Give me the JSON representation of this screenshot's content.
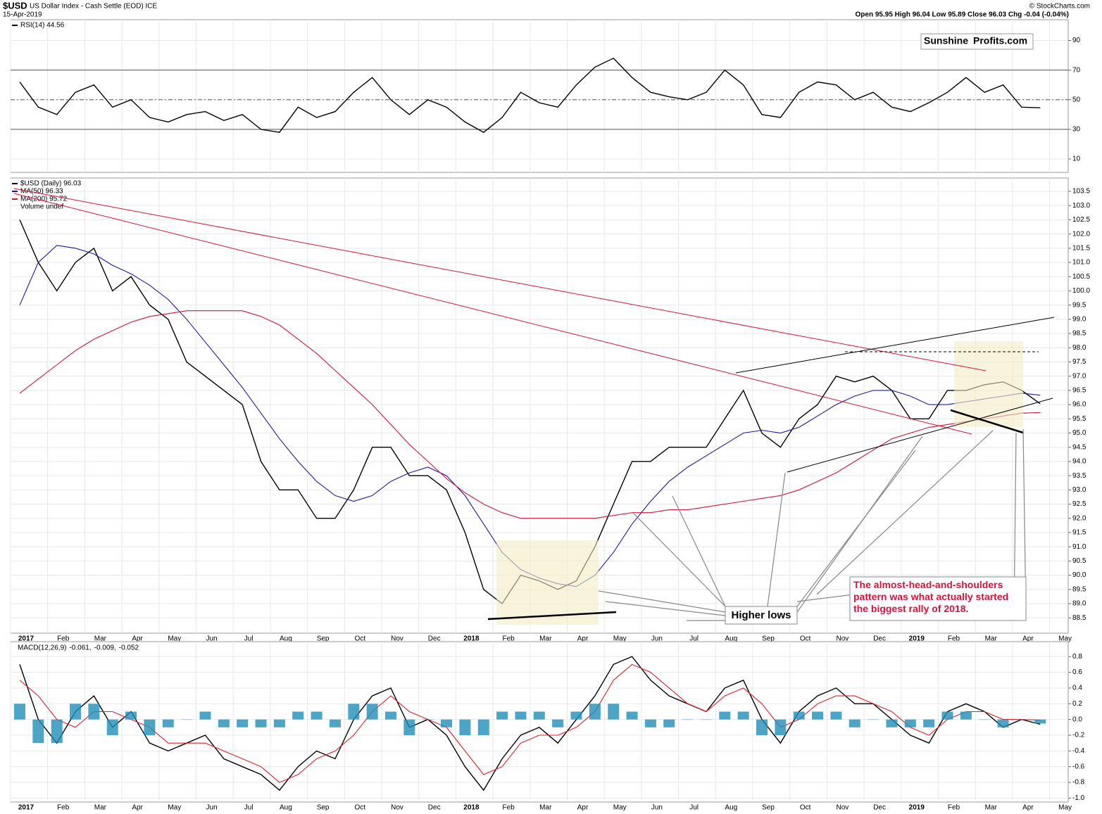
{
  "header": {
    "title": "$USD",
    "subtitle": "US Dollar Index - Cash Settle (EOD) ICE",
    "date": "15-Apr-2019",
    "source": "© StockCharts.com",
    "quote": "Open 95.95 High 96.04 Low 95.89 Close 96.03 Chg -0.04 (-0.04%)",
    "logo_left": "Sunshine",
    "logo_right": "Profits.com"
  },
  "chart_data": [
    {
      "type": "line",
      "panel": "rsi",
      "ylim": [
        1,
        104
      ],
      "yticks": [
        10,
        30,
        50,
        70,
        90
      ],
      "levels": [
        30,
        50,
        70
      ],
      "grid": true,
      "series": [
        {
          "name": "RSI(14) 44.56",
          "color": "#000000",
          "values": [
            62,
            45,
            40,
            55,
            60,
            45,
            50,
            38,
            35,
            40,
            42,
            36,
            40,
            30,
            28,
            45,
            38,
            42,
            55,
            65,
            50,
            40,
            50,
            45,
            35,
            28,
            38,
            55,
            48,
            45,
            60,
            72,
            78,
            65,
            55,
            52,
            50,
            55,
            70,
            60,
            40,
            38,
            55,
            62,
            60,
            50,
            55,
            45,
            42,
            48,
            55,
            65,
            55,
            60,
            45,
            44.56,
            null
          ]
        }
      ]
    },
    {
      "type": "line",
      "panel": "price",
      "ylim": [
        87.96,
        103.97
      ],
      "grid": true,
      "yticks": [
        88.5,
        {
          "value": 89,
          "label": "89.0"
        },
        89.5,
        {
          "value": 90,
          "label": "90.0"
        },
        90.5,
        {
          "value": 91,
          "label": "91.0"
        },
        91.5,
        {
          "value": 92,
          "label": "92.0"
        },
        92.5,
        {
          "value": 93,
          "label": "93.0"
        },
        93.5,
        {
          "value": 94,
          "label": "94.0"
        },
        94.5,
        {
          "value": 95,
          "label": "95.0"
        },
        95.5,
        {
          "value": 96,
          "label": "96.0"
        },
        96.5,
        {
          "value": 97,
          "label": "97.0"
        },
        97.5,
        {
          "value": 98,
          "label": "98.0"
        },
        98.5,
        {
          "value": 99,
          "label": "99.0"
        },
        99.5,
        {
          "value": 100,
          "label": "100.0"
        },
        100.5,
        {
          "value": 101,
          "label": "101.0"
        },
        101.5,
        {
          "value": 102,
          "label": "102.0"
        },
        102.5,
        {
          "value": 103,
          "label": "103.0"
        },
        103.5
      ],
      "categories": [
        "2017",
        null,
        "Feb",
        null,
        "Mar",
        null,
        "Apr",
        null,
        "May",
        null,
        "Jun",
        null,
        "Jul",
        null,
        "Aug",
        null,
        "Sep",
        null,
        "Oct",
        null,
        "Nov",
        null,
        "Dec",
        null,
        "2018",
        null,
        "Feb",
        null,
        "Mar",
        null,
        "Apr",
        null,
        "May",
        null,
        "Jun",
        null,
        "Jul",
        null,
        "Aug",
        null,
        "Sep",
        null,
        "Oct",
        null,
        "Nov",
        null,
        "Dec",
        null,
        "2019",
        null,
        "Feb",
        null,
        "Mar",
        null,
        "Apr",
        null,
        "May"
      ],
      "legend_extra": "Volume undef",
      "series": [
        {
          "name": "$USD (Daily) 96.03",
          "color": "#000000",
          "values": [
            102.5,
            101.0,
            100.0,
            101.0,
            101.5,
            100.0,
            100.5,
            99.5,
            99.0,
            97.5,
            97.0,
            96.5,
            96.0,
            94.0,
            93.0,
            93.0,
            92.0,
            92.0,
            93.0,
            94.5,
            94.5,
            93.5,
            93.5,
            93.0,
            91.5,
            89.5,
            89.0,
            90.0,
            89.8,
            89.5,
            89.8,
            91.0,
            92.5,
            94.0,
            94.0,
            94.5,
            94.5,
            94.5,
            95.5,
            96.5,
            95.0,
            94.5,
            95.5,
            96.0,
            97.0,
            96.8,
            97.0,
            96.5,
            95.5,
            95.5,
            96.5,
            96.5,
            96.7,
            96.8,
            96.5,
            96.03,
            null
          ]
        },
        {
          "name": "MA(50) 96.33",
          "color": "#1c1c9c",
          "values": [
            99.5,
            101.0,
            101.6,
            101.5,
            101.3,
            100.9,
            100.6,
            100.2,
            99.7,
            99.0,
            98.2,
            97.4,
            96.6,
            95.7,
            94.8,
            94.0,
            93.3,
            92.8,
            92.6,
            92.8,
            93.3,
            93.6,
            93.8,
            93.5,
            92.8,
            91.8,
            90.8,
            90.2,
            89.9,
            89.7,
            89.6,
            90.0,
            90.8,
            91.8,
            92.6,
            93.3,
            93.8,
            94.2,
            94.6,
            95.0,
            95.1,
            95.0,
            95.2,
            95.6,
            96.0,
            96.3,
            96.5,
            96.5,
            96.3,
            96.0,
            96.0,
            96.1,
            96.2,
            96.3,
            96.4,
            96.33,
            null
          ]
        },
        {
          "name": "MA(200) 95.72",
          "color": "#d4143c",
          "values": [
            96.4,
            96.9,
            97.4,
            97.9,
            98.3,
            98.6,
            98.9,
            99.1,
            99.2,
            99.3,
            99.3,
            99.3,
            99.3,
            99.1,
            98.8,
            98.3,
            97.8,
            97.2,
            96.6,
            96.0,
            95.3,
            94.6,
            94.0,
            93.4,
            92.9,
            92.5,
            92.2,
            92.0,
            92.0,
            92.0,
            92.0,
            92.0,
            92.1,
            92.2,
            92.2,
            92.3,
            92.3,
            92.4,
            92.5,
            92.6,
            92.7,
            92.8,
            93.0,
            93.3,
            93.6,
            94.0,
            94.4,
            94.8,
            95.0,
            95.2,
            95.3,
            95.4,
            95.5,
            95.6,
            95.7,
            95.72,
            null
          ]
        }
      ],
      "annotations": [
        "Higher lows",
        "The almost-head-and-shoulders pattern was what actually started the biggest rally of 2018."
      ]
    },
    {
      "type": "line",
      "panel": "macd",
      "ylim": [
        -1.05,
        0.99
      ],
      "grid": true,
      "yticks": [
        0.8,
        0.6,
        0.4,
        0.2,
        {
          "value": 0,
          "label": "0.0"
        },
        -0.2,
        -0.4,
        -0.6,
        -0.8,
        {
          "value": -1,
          "label": "-1.0"
        }
      ],
      "categories": [
        "2017",
        null,
        "Feb",
        null,
        "Mar",
        null,
        "Apr",
        null,
        "May",
        null,
        "Jun",
        null,
        "Jul",
        null,
        "Aug",
        null,
        "Sep",
        null,
        "Oct",
        null,
        "Nov",
        null,
        "Dec",
        null,
        "2018",
        null,
        "Feb",
        null,
        "Mar",
        null,
        "Apr",
        null,
        "May",
        null,
        "Jun",
        null,
        "Jul",
        null,
        "Aug",
        null,
        "Sep",
        null,
        "Oct",
        null,
        "Nov",
        null,
        "Dec",
        null,
        "2019",
        null,
        "Feb",
        null,
        "Mar",
        null,
        "Apr",
        null,
        "May"
      ],
      "legend_title": "MACD(12,26,9)",
      "series": [
        {
          "name": "-0.061,",
          "color": "#000000",
          "values": [
            0.7,
            0.0,
            -0.3,
            0.1,
            0.3,
            -0.1,
            0.1,
            -0.3,
            -0.4,
            -0.3,
            -0.2,
            -0.5,
            -0.6,
            -0.7,
            -0.9,
            -0.6,
            -0.4,
            -0.5,
            0.0,
            0.3,
            0.4,
            -0.1,
            0.0,
            -0.2,
            -0.6,
            -0.9,
            -0.5,
            -0.2,
            -0.1,
            -0.3,
            0.0,
            0.3,
            0.7,
            0.8,
            0.5,
            0.3,
            0.2,
            0.1,
            0.4,
            0.5,
            0.0,
            -0.3,
            0.1,
            0.3,
            0.4,
            0.2,
            0.2,
            0.0,
            -0.2,
            -0.3,
            0.1,
            0.2,
            0.1,
            -0.1,
            0.0,
            -0.061,
            null
          ]
        },
        {
          "name": "-0.009,",
          "color": "#e0202a",
          "values": [
            0.5,
            0.3,
            0.0,
            -0.1,
            0.1,
            0.1,
            0.0,
            -0.1,
            -0.3,
            -0.3,
            -0.3,
            -0.4,
            -0.5,
            -0.6,
            -0.8,
            -0.7,
            -0.5,
            -0.4,
            -0.2,
            0.1,
            0.3,
            0.1,
            0.0,
            -0.1,
            -0.4,
            -0.7,
            -0.6,
            -0.3,
            -0.2,
            -0.2,
            -0.1,
            0.1,
            0.5,
            0.7,
            0.6,
            0.4,
            0.2,
            0.1,
            0.3,
            0.4,
            0.2,
            -0.1,
            0.0,
            0.2,
            0.3,
            0.3,
            0.2,
            0.1,
            -0.1,
            -0.2,
            0.0,
            0.1,
            0.1,
            0.0,
            0.0,
            -0.009,
            null
          ]
        },
        {
          "name": "-0.052",
          "color": "#1f8fb8",
          "type": "bar",
          "values": [
            0.2,
            -0.3,
            -0.3,
            0.2,
            0.2,
            -0.2,
            0.1,
            -0.2,
            -0.1,
            0.0,
            0.1,
            -0.1,
            -0.1,
            -0.1,
            -0.1,
            0.1,
            0.1,
            -0.1,
            0.2,
            0.2,
            0.1,
            -0.2,
            0.0,
            -0.1,
            -0.2,
            -0.2,
            0.1,
            0.1,
            0.1,
            -0.1,
            0.1,
            0.2,
            0.2,
            0.1,
            -0.1,
            -0.1,
            0.0,
            0.0,
            0.1,
            0.1,
            -0.2,
            -0.2,
            0.1,
            0.1,
            0.1,
            -0.1,
            0.0,
            -0.1,
            -0.1,
            -0.1,
            0.1,
            0.1,
            0.0,
            -0.1,
            0.0,
            -0.052,
            null
          ]
        }
      ]
    }
  ]
}
